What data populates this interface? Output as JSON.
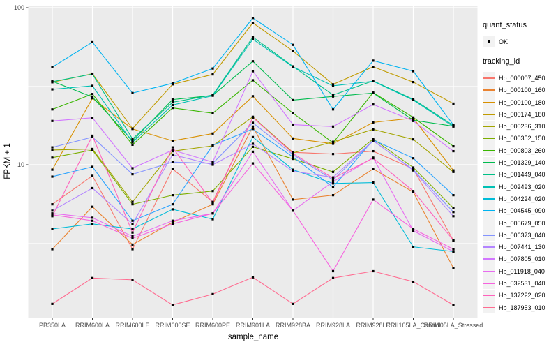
{
  "figure": {
    "background": "#FFFFFF",
    "panel_background": "#EBEBEB",
    "grid_color": "#FFFFFF",
    "tick_color": "#333333",
    "tick_label_color": "#4D4D4D",
    "axis_title_color": "#000000",
    "point_color": "#000000",
    "legend_key_fill": "#F2F2F2"
  },
  "chart_data": {
    "type": "line",
    "title": "",
    "xlabel": "sample_name",
    "ylabel": "FPKM + 1",
    "y_scale": "log10",
    "ylim": [
      1.05,
      103
    ],
    "y_ticks": [
      100,
      10
    ],
    "y_minor": [
      31.62,
      3.162
    ],
    "grid": true,
    "legend_position": "right",
    "point_marker": "small black point (quant_status = OK)",
    "categories": [
      "PB350LA",
      "RRIM600LA",
      "RRIM600LE",
      "RRIM600SE",
      "RRIM600PE",
      "RRIM901LA",
      "RRIM928BA",
      "RRIM928LA",
      "RRIM928LE",
      "RRII105LA_Control",
      "RRII105LA_Stressed"
    ],
    "legend": {
      "quant_status_title": "quant_status",
      "quant_status_items": [
        "OK"
      ],
      "tracking_title": "tracking_id"
    },
    "series": [
      {
        "name": "Hb_000007_450",
        "color": "#F8766D",
        "values": [
          5.6,
          8.5,
          2.9,
          9.4,
          5.8,
          20.0,
          12.0,
          11.7,
          12.2,
          9.4,
          3.3
        ]
      },
      {
        "name": "Hb_000100_160",
        "color": "#EA8331",
        "values": [
          2.9,
          5.4,
          3.1,
          4.3,
          5.6,
          17.5,
          6.0,
          6.4,
          9.4,
          6.7,
          2.2
        ]
      },
      {
        "name": "Hb_000100_180",
        "color": "#D89000",
        "values": [
          9.3,
          26.5,
          16.9,
          14.2,
          15.8,
          27.3,
          14.7,
          13.6,
          18.6,
          19.8,
          9.2
        ]
      },
      {
        "name": "Hb_000174_180",
        "color": "#C09B00",
        "values": [
          33.5,
          38.0,
          17.0,
          32.5,
          37.6,
          80.0,
          53.0,
          32.5,
          42.0,
          33.6,
          24.5
        ]
      },
      {
        "name": "Hb_000236_310",
        "color": "#A3A500",
        "values": [
          12.4,
          12.6,
          5.8,
          12.2,
          13.2,
          20.2,
          11.9,
          14.0,
          16.8,
          14.5,
          9.0
        ]
      },
      {
        "name": "Hb_000352_150",
        "color": "#7CAE00",
        "values": [
          11.1,
          12.4,
          5.6,
          6.4,
          6.8,
          13.0,
          10.9,
          9.0,
          14.6,
          9.6,
          5.3
        ]
      },
      {
        "name": "Hb_000803_260",
        "color": "#39B600",
        "values": [
          22.5,
          28.2,
          13.4,
          23.0,
          21.3,
          34.5,
          21.3,
          13.8,
          28.8,
          20.0,
          13.1
        ]
      },
      {
        "name": "Hb_001329_140",
        "color": "#00BB4E",
        "values": [
          34.0,
          27.0,
          14.2,
          26.0,
          27.6,
          45.6,
          25.8,
          27.2,
          28.6,
          19.2,
          17.6
        ]
      },
      {
        "name": "Hb_001449_040",
        "color": "#00C087",
        "values": [
          33.8,
          37.8,
          14.6,
          25.0,
          27.8,
          65.0,
          42.3,
          27.8,
          34.2,
          26.1,
          17.8
        ]
      },
      {
        "name": "Hb_002493_020",
        "color": "#00C0B4",
        "values": [
          30.2,
          31.8,
          13.9,
          24.0,
          27.5,
          63.0,
          42.0,
          31.8,
          34.0,
          25.8,
          17.5
        ]
      },
      {
        "name": "Hb_004224_020",
        "color": "#00BCD8",
        "values": [
          3.9,
          4.2,
          3.9,
          5.2,
          4.5,
          15.0,
          9.3,
          7.6,
          7.7,
          3.0,
          2.8
        ]
      },
      {
        "name": "Hb_004545_090",
        "color": "#00B3F0",
        "values": [
          41.8,
          60.3,
          28.6,
          33.0,
          41.0,
          86.0,
          58.0,
          22.5,
          46.0,
          39.4,
          17.9
        ]
      },
      {
        "name": "Hb_005679_050",
        "color": "#29A3FF",
        "values": [
          8.4,
          9.7,
          4.4,
          5.6,
          13.3,
          16.9,
          11.2,
          7.2,
          14.4,
          11.0,
          6.4
        ]
      },
      {
        "name": "Hb_006373_040",
        "color": "#8494FF",
        "values": [
          12.9,
          15.0,
          8.7,
          10.4,
          10.2,
          18.5,
          11.6,
          8.0,
          14.2,
          9.3,
          5.0
        ]
      },
      {
        "name": "Hb_007441_130",
        "color": "#B385FF",
        "values": [
          5.1,
          7.1,
          4.2,
          11.6,
          10.0,
          13.6,
          9.1,
          8.3,
          14.3,
          9.2,
          4.7
        ]
      },
      {
        "name": "Hb_007805_010",
        "color": "#D277FF",
        "values": [
          19.0,
          19.9,
          9.5,
          12.4,
          10.4,
          39.4,
          18.0,
          17.5,
          24.2,
          19.0,
          12.2
        ]
      },
      {
        "name": "Hb_011918_040",
        "color": "#E86DF0",
        "values": [
          4.9,
          4.6,
          3.5,
          4.4,
          4.9,
          12.1,
          5.1,
          7.8,
          11.1,
          3.8,
          2.8
        ]
      },
      {
        "name": "Hb_032531_040",
        "color": "#F763DF",
        "values": [
          4.8,
          4.4,
          3.4,
          4.2,
          4.9,
          10.2,
          5.1,
          2.1,
          6.0,
          3.9,
          2.9
        ]
      },
      {
        "name": "Hb_137222_020",
        "color": "#FF62BC",
        "values": [
          4.7,
          15.3,
          3.7,
          12.9,
          5.7,
          20.0,
          11.8,
          8.2,
          11.0,
          6.8,
          3.3
        ]
      },
      {
        "name": "Hb_187953_010",
        "color": "#FF6C91",
        "values": [
          1.3,
          1.9,
          1.85,
          1.28,
          1.5,
          1.92,
          1.3,
          1.9,
          2.1,
          1.8,
          1.28
        ]
      }
    ]
  }
}
